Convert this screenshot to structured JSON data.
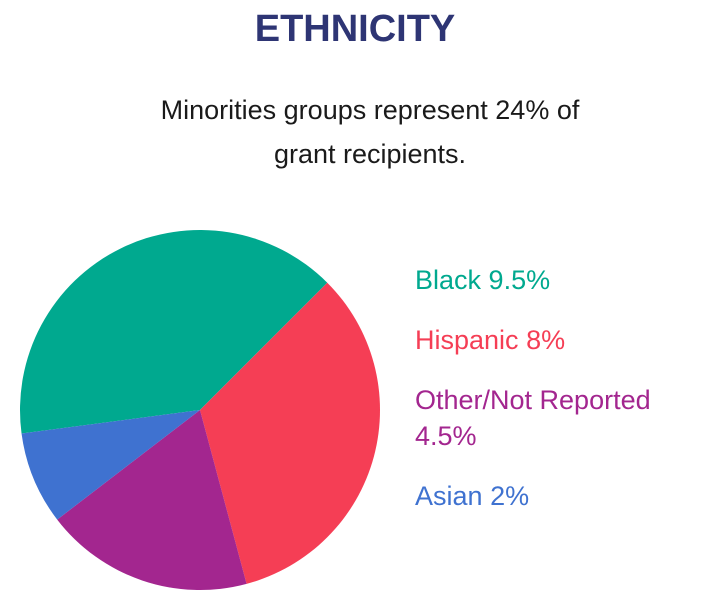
{
  "chart_data": {
    "type": "pie",
    "title": "ETHNICITY",
    "subtitle": "Minorities groups represent 24% of grant recipients.",
    "categories": [
      "Black",
      "Hispanic",
      "Other/Not Reported",
      "Asian"
    ],
    "values": [
      9.5,
      8,
      4.5,
      2
    ],
    "value_labels": [
      "9.5%",
      "8%",
      "4.5%",
      "2%"
    ],
    "colors": [
      "#00a98f",
      "#f53e55",
      "#a3268f",
      "#3f72d0"
    ]
  }
}
